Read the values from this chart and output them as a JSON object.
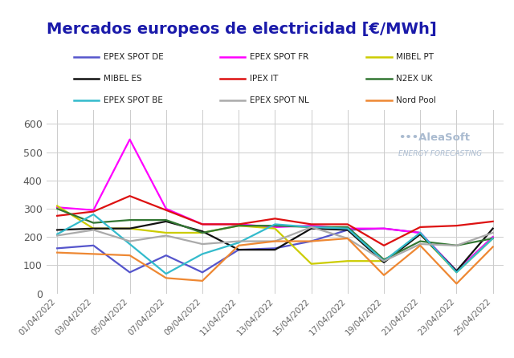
{
  "title": "Mercados europeos de electricidad [€/MWh]",
  "title_color": "#1a1aaa",
  "background_color": "#ffffff",
  "plot_bg_color": "#ffffff",
  "grid_color": "#cccccc",
  "xlabels": [
    "01/04/2022",
    "03/04/2022",
    "05/04/2022",
    "07/04/2022",
    "09/04/2022",
    "11/04/2022",
    "13/04/2022",
    "15/04/2022",
    "17/04/2022",
    "19/04/2022",
    "21/04/2022",
    "23/04/2022",
    "25/04/2022"
  ],
  "ylim": [
    0,
    650
  ],
  "yticks": [
    0,
    100,
    200,
    300,
    400,
    500,
    600
  ],
  "series": [
    {
      "label": "EPEX SPOT DE",
      "color": "#5555cc",
      "values": [
        160,
        170,
        75,
        135,
        75,
        155,
        160,
        185,
        225,
        230,
        215,
        80,
        200
      ]
    },
    {
      "label": "EPEX SPOT FR",
      "color": "#ff00ff",
      "values": [
        305,
        295,
        545,
        300,
        245,
        245,
        235,
        240,
        230,
        230,
        215,
        80,
        200
      ]
    },
    {
      "label": "MIBEL PT",
      "color": "#cccc00",
      "values": [
        310,
        230,
        230,
        215,
        215,
        240,
        230,
        105,
        115,
        115,
        210,
        75,
        195
      ]
    },
    {
      "label": "MIBEL ES",
      "color": "#111111",
      "values": [
        225,
        230,
        230,
        255,
        220,
        155,
        155,
        230,
        225,
        110,
        210,
        80,
        230
      ]
    },
    {
      "label": "IPEX IT",
      "color": "#dd1111",
      "values": [
        275,
        290,
        345,
        295,
        245,
        245,
        265,
        245,
        245,
        170,
        235,
        240,
        255
      ]
    },
    {
      "label": "N2EX UK",
      "color": "#337733",
      "values": [
        300,
        250,
        260,
        260,
        215,
        240,
        240,
        235,
        235,
        120,
        185,
        170,
        195
      ]
    },
    {
      "label": "EPEX SPOT BE",
      "color": "#33bbcc",
      "values": [
        210,
        280,
        175,
        70,
        140,
        180,
        245,
        235,
        230,
        115,
        215,
        75,
        195
      ]
    },
    {
      "label": "EPEX SPOT NL",
      "color": "#aaaaaa",
      "values": [
        205,
        225,
        185,
        205,
        175,
        185,
        185,
        235,
        195,
        115,
        175,
        170,
        215
      ]
    },
    {
      "label": "Nord Pool",
      "color": "#ee8833",
      "values": [
        145,
        140,
        135,
        55,
        45,
        170,
        185,
        185,
        195,
        65,
        170,
        35,
        165
      ]
    }
  ],
  "legend_rows": [
    [
      "EPEX SPOT DE",
      "EPEX SPOT FR",
      "MIBEL PT"
    ],
    [
      "MIBEL ES",
      "IPEX IT",
      "N2EX UK"
    ],
    [
      "EPEX SPOT BE",
      "EPEX SPOT NL",
      "Nord Pool"
    ]
  ],
  "watermark_line1": "•••AleaSoft",
  "watermark_line2": "ENERGY FORECASTING",
  "watermark_color": "#aabbd0"
}
